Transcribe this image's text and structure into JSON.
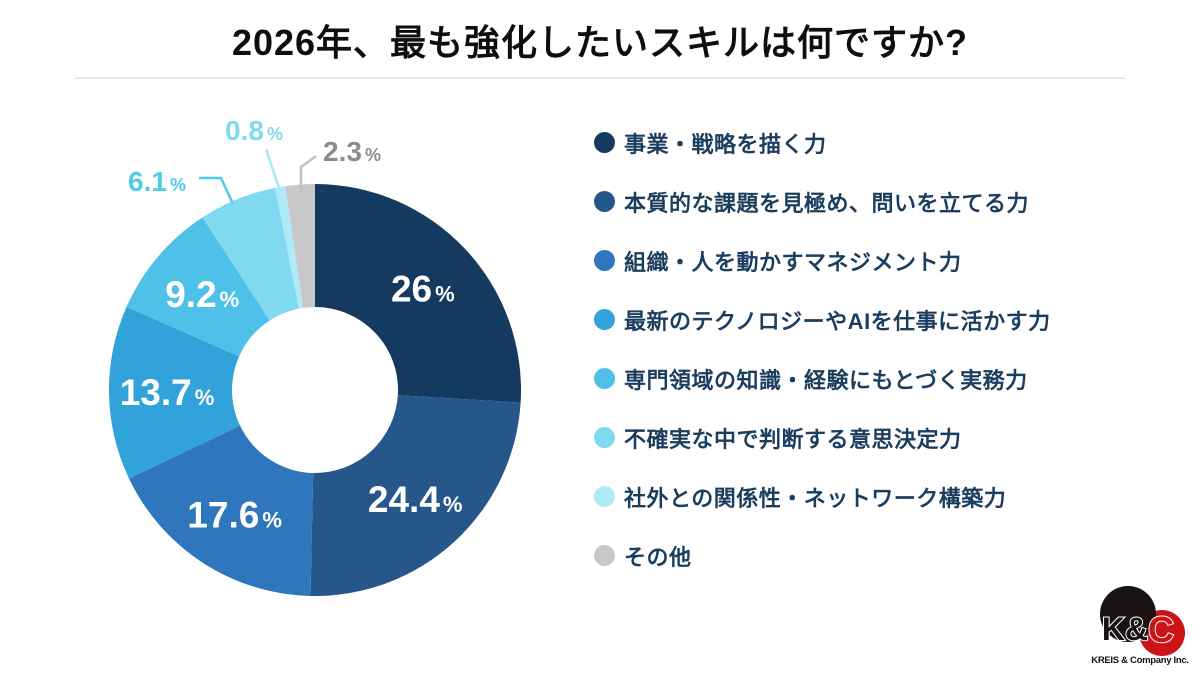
{
  "header": {
    "title": "2026年、最も強化したいスキルは何ですか?"
  },
  "chart_data": {
    "type": "donut",
    "title": "2026年、最も強化したいスキルは何ですか?",
    "unit": "%",
    "start_angle": "top-clockwise",
    "legend_position": "right",
    "series": [
      {
        "label": "事業・戦略を描く力",
        "value": 26,
        "display": "26",
        "color": "#153a60",
        "label_placement": "inside",
        "label_color": "#ffffff"
      },
      {
        "label": "本質的な課題を見極め、問いを立てる力",
        "value": 24.4,
        "display": "24.4",
        "color": "#26578a",
        "label_placement": "inside",
        "label_color": "#ffffff"
      },
      {
        "label": "組織・人を動かすマネジメント力",
        "value": 17.6,
        "display": "17.6",
        "color": "#3076bc",
        "label_placement": "inside",
        "label_color": "#ffffff"
      },
      {
        "label": "最新のテクノロジーやAIを仕事に活かす力",
        "value": 13.7,
        "display": "13.7",
        "color": "#31a2da",
        "label_placement": "inside",
        "label_color": "#ffffff"
      },
      {
        "label": "専門領域の知識・経験にもとづく実務力",
        "value": 9.2,
        "display": "9.2",
        "color": "#4fc0e8",
        "label_placement": "inside",
        "label_color": "#ffffff"
      },
      {
        "label": "不確実な中で判断する意思決定力",
        "value": 6.1,
        "display": "6.1",
        "color": "#7ed9f1",
        "label_placement": "outside",
        "label_color": "#4ecce9"
      },
      {
        "label": "社外との関係性・ネットワーク構築力",
        "value": 0.8,
        "display": "0.8",
        "color": "#aeeaf8",
        "label_placement": "outside",
        "label_color": "#7fdaee"
      },
      {
        "label": "その他",
        "value": 2.3,
        "display": "2.3",
        "color": "#c8c8cb",
        "label_placement": "outside",
        "label_color": "#8c8c8c"
      }
    ]
  },
  "logo": {
    "mark_left": "K&",
    "mark_right": "C",
    "caption": "KREIS & Company Inc.",
    "black": "#181212",
    "red": "#cc1417"
  }
}
